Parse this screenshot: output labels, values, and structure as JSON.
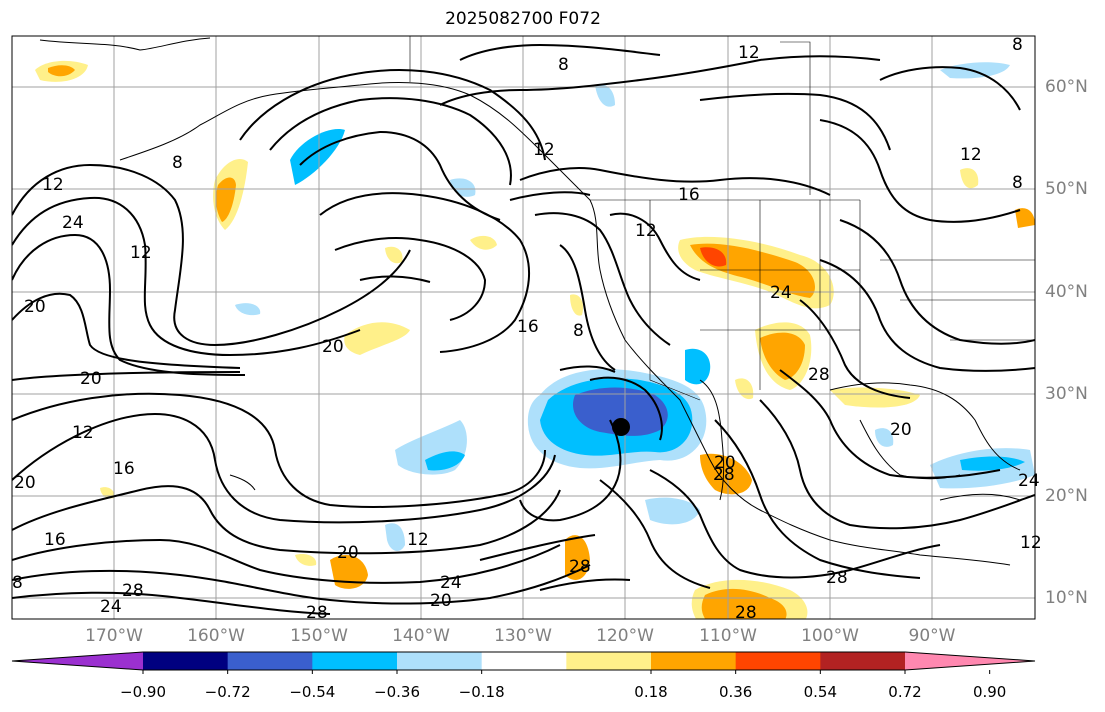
{
  "title": "2025082700 F072",
  "map": {
    "lat_labels": [
      "60°N",
      "50°N",
      "40°N",
      "30°N",
      "20°N",
      "10°N"
    ],
    "lon_labels": [
      "170°W",
      "160°W",
      "150°W",
      "140°W",
      "130°W",
      "120°W",
      "110°W",
      "100°W",
      "90°W"
    ],
    "contour_labels": [
      "8",
      "12",
      "12",
      "24",
      "12",
      "20",
      "20",
      "12",
      "16",
      "20",
      "16",
      "12",
      "20",
      "20",
      "16",
      "12",
      "8",
      "16",
      "12",
      "24",
      "28",
      "24",
      "28",
      "20",
      "24",
      "20",
      "28",
      "28",
      "28",
      "28",
      "12",
      "8",
      "20",
      "24",
      "28",
      "8",
      "8",
      "12",
      "8"
    ],
    "marker": "black dot",
    "fill_colors": {
      "neg_090": "#9b30d0",
      "neg_072": "#000080",
      "neg_054": "#3a5fcd",
      "neg_036": "#00bfff",
      "neg_018": "#aee0fb",
      "pos_018": "#fff08a",
      "pos_036": "#ffa500",
      "pos_054": "#ff4500",
      "pos_072": "#b22222",
      "pos_090": "#ff88b0"
    }
  },
  "colorbar": {
    "colors": [
      "#9b30d0",
      "#000080",
      "#3a5fcd",
      "#00bfff",
      "#aee0fb",
      "#ffffff",
      "#fff08a",
      "#ffa500",
      "#ff4500",
      "#b22222",
      "#ff88b0"
    ],
    "labels": [
      "−0.90",
      "−0.72",
      "−0.54",
      "−0.36",
      "−0.18",
      "0.18",
      "0.36",
      "0.54",
      "0.72",
      "0.90"
    ]
  }
}
